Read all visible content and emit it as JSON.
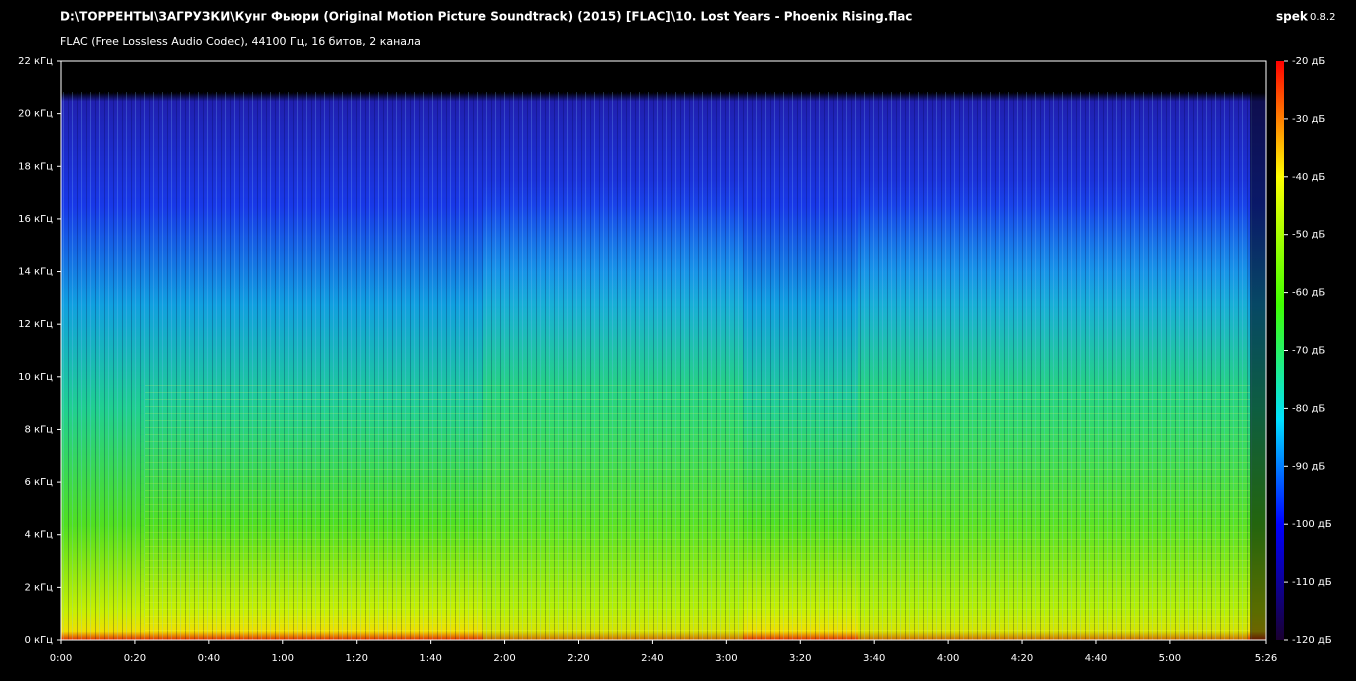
{
  "chart_data": {
    "type": "spectrogram",
    "title": "D:\\ТОРРЕНТЫ\\ЗАГРУЗКИ\\Кунг Фьюри (Original Motion Picture Soundtrack) (2015) [FLAC]\\10. Lost Years - Phoenix Rising.flac",
    "subtitle": "FLAC (Free Lossless Audio Codec), 44100 Гц, 16 битов, 2 канала",
    "app_name": "spek",
    "app_version": "0.8.2",
    "xlim": [
      0,
      326
    ],
    "xticks": [
      {
        "value": 0,
        "label": "0:00"
      },
      {
        "value": 20,
        "label": "0:20"
      },
      {
        "value": 40,
        "label": "0:40"
      },
      {
        "value": 60,
        "label": "1:00"
      },
      {
        "value": 80,
        "label": "1:20"
      },
      {
        "value": 100,
        "label": "1:40"
      },
      {
        "value": 120,
        "label": "2:00"
      },
      {
        "value": 140,
        "label": "2:20"
      },
      {
        "value": 160,
        "label": "2:40"
      },
      {
        "value": 180,
        "label": "3:00"
      },
      {
        "value": 200,
        "label": "3:20"
      },
      {
        "value": 220,
        "label": "3:40"
      },
      {
        "value": 240,
        "label": "4:00"
      },
      {
        "value": 260,
        "label": "4:20"
      },
      {
        "value": 280,
        "label": "4:40"
      },
      {
        "value": 300,
        "label": "5:00"
      },
      {
        "value": 326,
        "label": "5:26"
      }
    ],
    "ylim": [
      0,
      22
    ],
    "yticks": [
      {
        "value": 0,
        "label": "0 кГц"
      },
      {
        "value": 2,
        "label": "2 кГц"
      },
      {
        "value": 4,
        "label": "4 кГц"
      },
      {
        "value": 6,
        "label": "6 кГц"
      },
      {
        "value": 8,
        "label": "8 кГц"
      },
      {
        "value": 10,
        "label": "10 кГц"
      },
      {
        "value": 12,
        "label": "12 кГц"
      },
      {
        "value": 14,
        "label": "14 кГц"
      },
      {
        "value": 16,
        "label": "16 кГц"
      },
      {
        "value": 18,
        "label": "18 кГц"
      },
      {
        "value": 20,
        "label": "20 кГц"
      },
      {
        "value": 22,
        "label": "22 кГц"
      }
    ],
    "zlim": [
      -120,
      -20
    ],
    "zticks": [
      {
        "value": -20,
        "label": "-20 дБ"
      },
      {
        "value": -30,
        "label": "-30 дБ"
      },
      {
        "value": -40,
        "label": "-40 дБ"
      },
      {
        "value": -50,
        "label": "-50 дБ"
      },
      {
        "value": -60,
        "label": "-60 дБ"
      },
      {
        "value": -70,
        "label": "-70 дБ"
      },
      {
        "value": -80,
        "label": "-80 дБ"
      },
      {
        "value": -90,
        "label": "-90 дБ"
      },
      {
        "value": -100,
        "label": "-100 дБ"
      },
      {
        "value": -110,
        "label": "-110 дБ"
      },
      {
        "value": -120,
        "label": "-120 дБ"
      }
    ]
  }
}
